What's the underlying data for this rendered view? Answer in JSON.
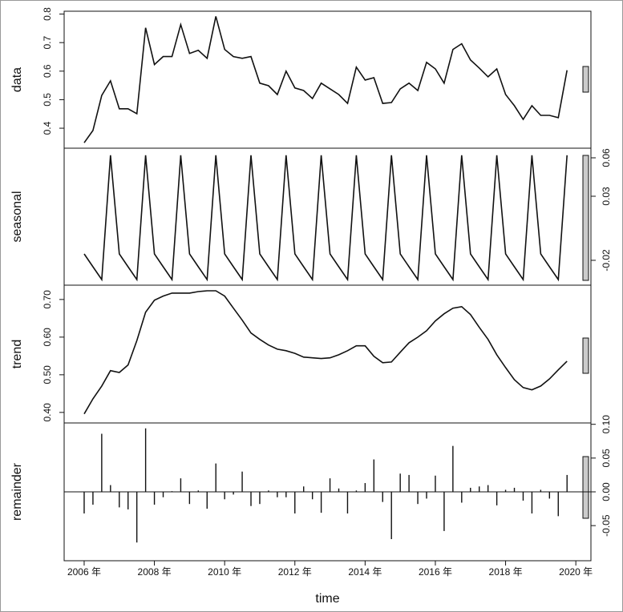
{
  "chart_data": [
    {
      "type": "line",
      "ylabel": "data",
      "axis_side": "left",
      "color": "#111111",
      "x": [
        2006,
        2006.25,
        2006.5,
        2006.75,
        2007,
        2007.25,
        2007.5,
        2007.75,
        2008,
        2008.25,
        2008.5,
        2008.75,
        2009,
        2009.25,
        2009.5,
        2009.75,
        2010,
        2010.25,
        2010.5,
        2010.75,
        2011,
        2011.25,
        2011.5,
        2011.75,
        2012,
        2012.25,
        2012.5,
        2012.75,
        2013,
        2013.25,
        2013.5,
        2013.75,
        2014,
        2014.25,
        2014.5,
        2014.75,
        2015,
        2015.25,
        2015.5,
        2015.75,
        2016,
        2016.25,
        2016.5,
        2016.75,
        2017,
        2017.25,
        2017.5,
        2017.75,
        2018,
        2018.25,
        2018.5,
        2018.75,
        2019,
        2019.25,
        2019.5,
        2019.75
      ],
      "values": [
        0.349,
        0.392,
        0.515,
        0.566,
        0.468,
        0.468,
        0.451,
        0.752,
        0.623,
        0.651,
        0.651,
        0.763,
        0.662,
        0.673,
        0.645,
        0.792,
        0.676,
        0.651,
        0.645,
        0.651,
        0.558,
        0.549,
        0.518,
        0.6,
        0.541,
        0.532,
        0.504,
        0.558,
        0.538,
        0.518,
        0.487,
        0.614,
        0.569,
        0.577,
        0.487,
        0.49,
        0.538,
        0.558,
        0.532,
        0.631,
        0.608,
        0.558,
        0.676,
        0.696,
        0.639,
        0.611,
        0.58,
        0.608,
        0.518,
        0.479,
        0.431,
        0.479,
        0.445,
        0.445,
        0.437,
        0.603
      ],
      "ylim": [
        0.33,
        0.81
      ],
      "yticks": [
        0.4,
        0.5,
        0.6,
        0.7,
        0.8
      ],
      "xlim": [
        2005.43,
        2020.43
      ]
    },
    {
      "type": "line",
      "ylabel": "seasonal",
      "axis_side": "right",
      "color": "#111111",
      "x": [
        2006,
        2006.25,
        2006.5,
        2006.75,
        2007,
        2007.25,
        2007.5,
        2007.75,
        2008,
        2008.25,
        2008.5,
        2008.75,
        2009,
        2009.25,
        2009.5,
        2009.75,
        2010,
        2010.25,
        2010.5,
        2010.75,
        2011,
        2011.25,
        2011.5,
        2011.75,
        2012,
        2012.25,
        2012.5,
        2012.75,
        2013,
        2013.25,
        2013.5,
        2013.75,
        2014,
        2014.25,
        2014.5,
        2014.75,
        2015,
        2015.25,
        2015.5,
        2015.75,
        2016,
        2016.25,
        2016.5,
        2016.75,
        2017,
        2017.25,
        2017.5,
        2017.75,
        2018,
        2018.25,
        2018.5,
        2018.75,
        2019,
        2019.25,
        2019.5,
        2019.75
      ],
      "values": [
        -0.015,
        -0.025,
        -0.035,
        0.062,
        -0.015,
        -0.025,
        -0.035,
        0.062,
        -0.015,
        -0.025,
        -0.035,
        0.062,
        -0.015,
        -0.025,
        -0.035,
        0.062,
        -0.015,
        -0.025,
        -0.035,
        0.062,
        -0.015,
        -0.025,
        -0.035,
        0.062,
        -0.015,
        -0.025,
        -0.035,
        0.062,
        -0.015,
        -0.025,
        -0.035,
        0.062,
        -0.015,
        -0.025,
        -0.035,
        0.062,
        -0.015,
        -0.025,
        -0.035,
        0.062,
        -0.015,
        -0.025,
        -0.035,
        0.062,
        -0.015,
        -0.025,
        -0.035,
        0.062,
        -0.015,
        -0.025,
        -0.035,
        0.062,
        -0.015,
        -0.025,
        -0.035,
        0.062
      ],
      "ylim": [
        -0.0394,
        0.0675
      ],
      "yticks": [
        -0.02,
        0.03,
        0.06
      ],
      "xlim": [
        2005.43,
        2020.43
      ]
    },
    {
      "type": "line",
      "ylabel": "trend",
      "axis_side": "left",
      "color": "#111111",
      "x": [
        2006,
        2006.25,
        2006.5,
        2006.75,
        2007,
        2007.25,
        2007.5,
        2007.75,
        2008,
        2008.25,
        2008.5,
        2008.75,
        2009,
        2009.25,
        2009.5,
        2009.75,
        2010,
        2010.25,
        2010.5,
        2010.75,
        2011,
        2011.25,
        2011.5,
        2011.75,
        2012,
        2012.25,
        2012.5,
        2012.75,
        2013,
        2013.25,
        2013.5,
        2013.75,
        2014,
        2014.25,
        2014.5,
        2014.75,
        2015,
        2015.25,
        2015.5,
        2015.75,
        2016,
        2016.25,
        2016.5,
        2016.75,
        2017,
        2017.25,
        2017.5,
        2017.75,
        2018,
        2018.25,
        2018.5,
        2018.75,
        2019,
        2019.25,
        2019.5,
        2019.75
      ],
      "values": [
        0.396,
        0.436,
        0.47,
        0.511,
        0.506,
        0.526,
        0.591,
        0.666,
        0.698,
        0.709,
        0.717,
        0.717,
        0.717,
        0.721,
        0.723,
        0.723,
        0.709,
        0.677,
        0.645,
        0.611,
        0.594,
        0.579,
        0.568,
        0.564,
        0.557,
        0.547,
        0.545,
        0.543,
        0.545,
        0.553,
        0.564,
        0.577,
        0.577,
        0.549,
        0.532,
        0.534,
        0.56,
        0.585,
        0.6,
        0.617,
        0.643,
        0.662,
        0.677,
        0.681,
        0.66,
        0.626,
        0.594,
        0.553,
        0.519,
        0.487,
        0.466,
        0.46,
        0.47,
        0.489,
        0.513,
        0.536
      ],
      "ylim": [
        0.372,
        0.738
      ],
      "yticks": [
        {
          "value": 0.4,
          "label": "0.40"
        },
        {
          "value": 0.5,
          "label": "0.50"
        },
        {
          "value": 0.6,
          "label": "0.60"
        },
        {
          "value": 0.7,
          "label": "0.70"
        }
      ],
      "xlim": [
        2005.43,
        2020.43
      ]
    },
    {
      "type": "bar",
      "ylabel": "remainder",
      "axis_side": "right",
      "color": "#111111",
      "xlabel": "time",
      "x": [
        2006,
        2006.25,
        2006.5,
        2006.75,
        2007,
        2007.25,
        2007.5,
        2007.75,
        2008,
        2008.25,
        2008.5,
        2008.75,
        2009,
        2009.25,
        2009.5,
        2009.75,
        2010,
        2010.25,
        2010.5,
        2010.75,
        2011,
        2011.25,
        2011.5,
        2011.75,
        2012,
        2012.25,
        2012.5,
        2012.75,
        2013,
        2013.25,
        2013.5,
        2013.75,
        2014,
        2014.25,
        2014.5,
        2014.75,
        2015,
        2015.25,
        2015.5,
        2015.75,
        2016,
        2016.25,
        2016.5,
        2016.75,
        2017,
        2017.25,
        2017.5,
        2017.75,
        2018,
        2018.25,
        2018.5,
        2018.75,
        2019,
        2019.25,
        2019.5,
        2019.75
      ],
      "values": [
        -0.032,
        -0.019,
        0.086,
        0.01,
        -0.023,
        -0.026,
        -0.075,
        0.094,
        -0.019,
        -0.008,
        0.001,
        0.02,
        -0.018,
        0.002,
        -0.025,
        0.042,
        -0.011,
        -0.004,
        0.03,
        -0.021,
        -0.018,
        0.002,
        -0.008,
        -0.008,
        -0.032,
        0.008,
        -0.011,
        -0.031,
        0.02,
        0.005,
        -0.032,
        0.002,
        0.013,
        0.048,
        -0.015,
        -0.07,
        0.027,
        0.025,
        -0.018,
        -0.01,
        0.024,
        -0.058,
        0.068,
        -0.016,
        0.006,
        0.008,
        0.01,
        -0.02,
        0.003,
        0.006,
        -0.013,
        -0.032,
        0.003,
        -0.01,
        -0.036,
        0.025
      ],
      "ylim": [
        -0.102,
        0.102
      ],
      "yticks": [
        -0.05,
        {
          "value": 0,
          "label": "0.00"
        },
        {
          "value": 0.05,
          "label": "0.05"
        },
        {
          "value": 0.1,
          "label": "0.10"
        }
      ],
      "xlim": [
        2005.43,
        2020.43
      ],
      "xticks": [
        {
          "value": 2006,
          "label": "2006 年"
        },
        {
          "value": 2008,
          "label": "2008 年"
        },
        {
          "value": 2010,
          "label": "2010 年"
        },
        {
          "value": 2012,
          "label": "2012 年"
        },
        {
          "value": 2014,
          "label": "2014 年"
        },
        {
          "value": 2016,
          "label": "2016 年"
        },
        {
          "value": 2018,
          "label": "2018 年"
        },
        {
          "value": 2020,
          "label": "2020 年"
        }
      ]
    }
  ]
}
